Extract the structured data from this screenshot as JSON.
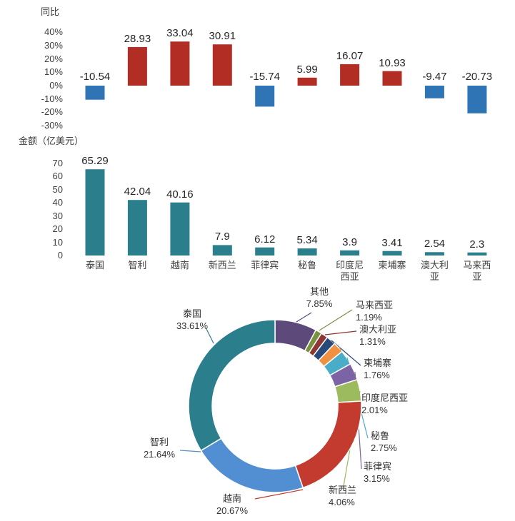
{
  "chart_data": [
    {
      "id": "yoy-bar-chart",
      "type": "bar",
      "title": "同比",
      "categories": [
        "泰国",
        "智利",
        "越南",
        "新西兰",
        "菲律宾",
        "秘鲁",
        "印度尼西亚",
        "柬埔寨",
        "澳大利亚",
        "马来西亚"
      ],
      "values": [
        -10.54,
        28.93,
        33.04,
        30.91,
        -15.74,
        5.99,
        16.07,
        10.93,
        -9.47,
        -20.73
      ],
      "y_ticks": [
        "40%",
        "30%",
        "20%",
        "10%",
        "0%",
        "-10%",
        "-20%",
        "-30%"
      ],
      "ylim": [
        -30,
        40
      ],
      "grid": false,
      "legend": "none",
      "positive_color": "#b22e25",
      "negative_color": "#2f74b5"
    },
    {
      "id": "amount-bar-chart",
      "type": "bar",
      "title": "金额（亿美元）",
      "categories": [
        "泰国",
        "智利",
        "越南",
        "新西兰",
        "菲律宾",
        "秘鲁",
        "印度尼西亚",
        "柬埔寨",
        "澳大利亚",
        "马来西亚"
      ],
      "values": [
        65.29,
        42.04,
        40.16,
        7.9,
        6.12,
        5.34,
        3.9,
        3.41,
        2.54,
        2.3
      ],
      "y_ticks": [
        "70",
        "60",
        "50",
        "40",
        "30",
        "20",
        "10",
        "0"
      ],
      "ylim": [
        0,
        70
      ],
      "grid": false,
      "legend": "none",
      "bar_color": "#2b7e8c"
    },
    {
      "id": "share-donut-chart",
      "type": "pie",
      "donut": true,
      "start_angle": "top-clockwise",
      "slices": [
        {
          "label": "其他",
          "value": 7.85,
          "color": "#5e4a7a"
        },
        {
          "label": "马来西亚",
          "value": 1.19,
          "color": "#79923e"
        },
        {
          "label": "澳大利亚",
          "value": 1.31,
          "color": "#8e3734"
        },
        {
          "label": "柬埔寨",
          "value": 1.76,
          "color": "#28497c"
        },
        {
          "label": "印度尼西亚",
          "value": 2.01,
          "color": "#ef9143"
        },
        {
          "label": "秘鲁",
          "value": 2.75,
          "color": "#49adc8"
        },
        {
          "label": "菲律宾",
          "value": 3.15,
          "color": "#7b63a4"
        },
        {
          "label": "新西兰",
          "value": 4.06,
          "color": "#9cba5e"
        },
        {
          "label": "越南",
          "value": 20.67,
          "color": "#c23b2e"
        },
        {
          "label": "智利",
          "value": 21.64,
          "color": "#518fd2"
        },
        {
          "label": "泰国",
          "value": 33.61,
          "color": "#2b7e8c"
        }
      ]
    }
  ]
}
